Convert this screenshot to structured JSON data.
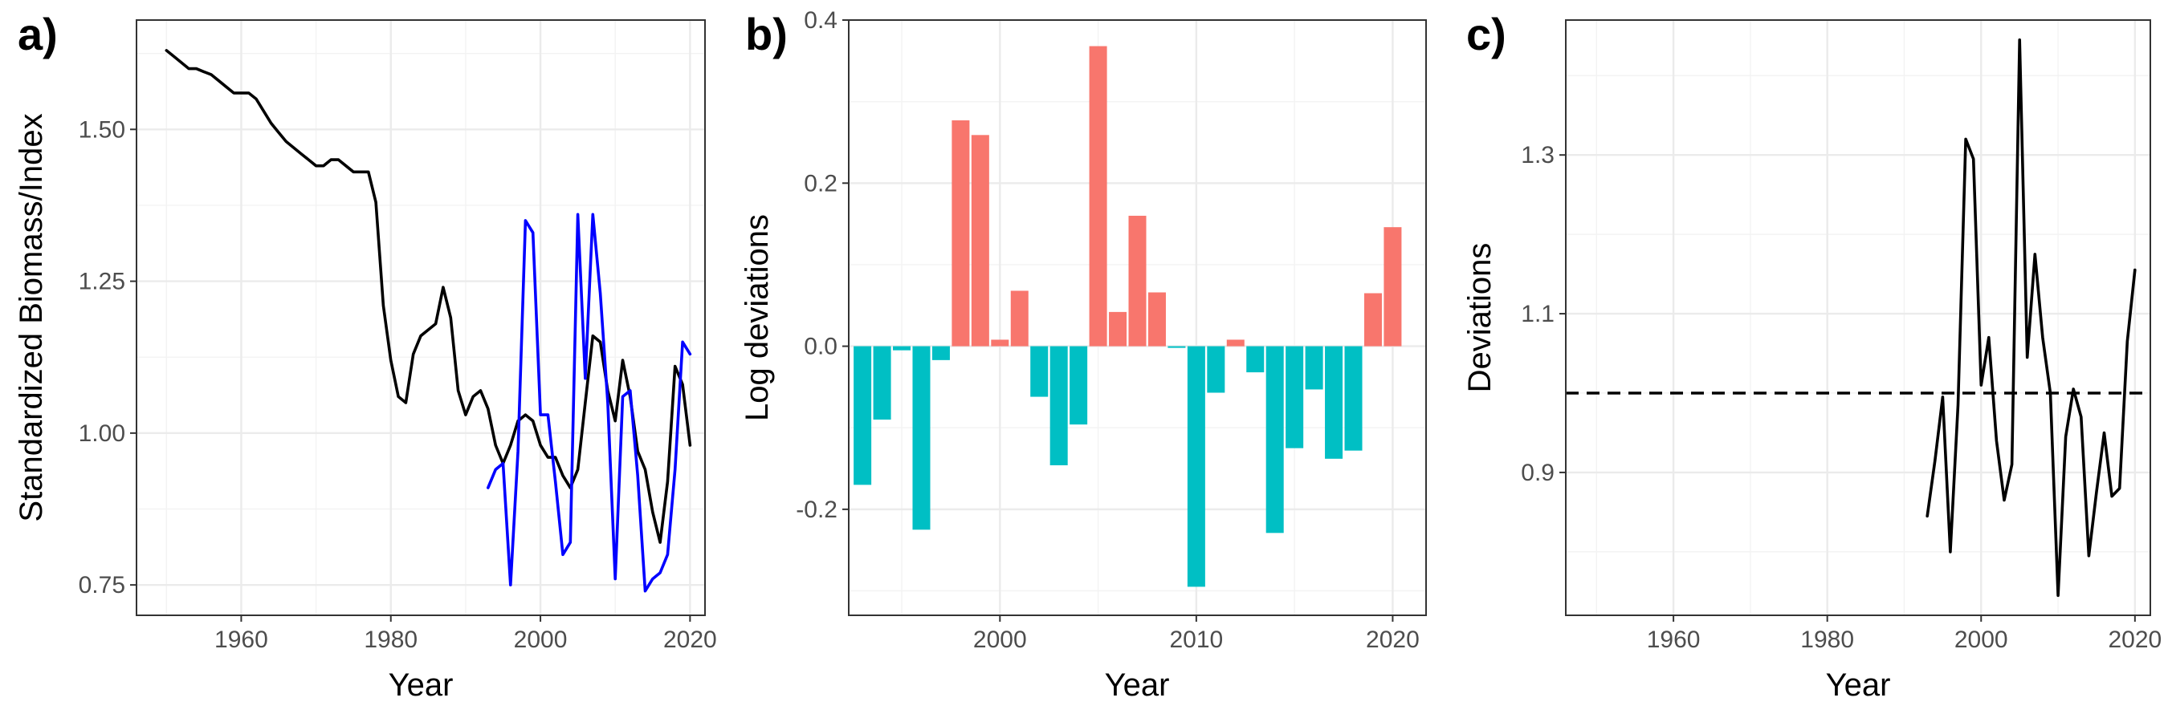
{
  "chart_data": [
    {
      "panel": "a)",
      "type": "line",
      "xlabel": "Year",
      "ylabel": "Standardized Biomass/Index",
      "xlim": [
        1946,
        2022
      ],
      "ylim": [
        0.7,
        1.68
      ],
      "xticks": [
        1960,
        1980,
        2000,
        2020
      ],
      "yticks": [
        0.75,
        1.0,
        1.25,
        1.5
      ],
      "ytick_labels": [
        "0.75",
        "1.00",
        "1.25",
        "1.50"
      ],
      "grid": true,
      "series": [
        {
          "color": "#000000",
          "x": [
            1950,
            1951,
            1952,
            1953,
            1954,
            1955,
            1956,
            1957,
            1958,
            1959,
            1960,
            1961,
            1962,
            1963,
            1964,
            1965,
            1966,
            1967,
            1968,
            1969,
            1970,
            1971,
            1972,
            1973,
            1974,
            1975,
            1976,
            1977,
            1978,
            1979,
            1980,
            1981,
            1982,
            1983,
            1984,
            1985,
            1986,
            1987,
            1988,
            1989,
            1990,
            1991,
            1992,
            1993,
            1994,
            1995,
            1996,
            1997,
            1998,
            1999,
            2000,
            2001,
            2002,
            2003,
            2004,
            2005,
            2006,
            2007,
            2008,
            2009,
            2010,
            2011,
            2012,
            2013,
            2014,
            2015,
            2016,
            2017,
            2018,
            2019,
            2020
          ],
          "y": [
            1.63,
            1.62,
            1.61,
            1.6,
            1.6,
            1.595,
            1.59,
            1.58,
            1.57,
            1.56,
            1.56,
            1.56,
            1.55,
            1.53,
            1.51,
            1.495,
            1.48,
            1.47,
            1.46,
            1.45,
            1.44,
            1.44,
            1.45,
            1.45,
            1.44,
            1.43,
            1.43,
            1.43,
            1.38,
            1.21,
            1.12,
            1.06,
            1.05,
            1.13,
            1.16,
            1.17,
            1.18,
            1.24,
            1.19,
            1.07,
            1.03,
            1.06,
            1.07,
            1.04,
            0.98,
            0.95,
            0.98,
            1.02,
            1.03,
            1.02,
            0.98,
            0.96,
            0.96,
            0.93,
            0.91,
            0.94,
            1.05,
            1.16,
            1.15,
            1.07,
            1.02,
            1.12,
            1.06,
            0.97,
            0.94,
            0.87,
            0.82,
            0.92,
            1.11,
            1.08,
            0.98
          ]
        },
        {
          "color": "#0000ff",
          "x": [
            1993,
            1994,
            1995,
            1996,
            1997,
            1998,
            1999,
            2000,
            2001,
            2002,
            2003,
            2004,
            2005,
            2006,
            2007,
            2008,
            2009,
            2010,
            2011,
            2012,
            2013,
            2014,
            2015,
            2016,
            2017,
            2018,
            2019,
            2020
          ],
          "y": [
            0.91,
            0.94,
            0.95,
            0.75,
            0.97,
            1.35,
            1.33,
            1.03,
            1.03,
            0.92,
            0.8,
            0.82,
            1.36,
            1.09,
            1.36,
            1.23,
            1.05,
            0.76,
            1.06,
            1.07,
            0.93,
            0.74,
            0.76,
            0.77,
            0.8,
            0.94,
            1.15,
            1.13
          ]
        }
      ]
    },
    {
      "panel": "b)",
      "type": "bar",
      "xlabel": "Year",
      "ylabel": "Log deviations",
      "xlim": [
        1992.3,
        2021.7
      ],
      "ylim": [
        -0.33,
        0.4
      ],
      "xticks": [
        2000,
        2010,
        2020
      ],
      "yticks": [
        -0.2,
        0.0,
        0.2,
        0.4
      ],
      "ytick_labels": [
        "-0.2",
        "0.0",
        "0.2",
        "0.4"
      ],
      "grid": true,
      "positive_color": "#f8766d",
      "negative_color": "#00bfc4",
      "x": [
        1993,
        1994,
        1995,
        1996,
        1997,
        1998,
        1999,
        2000,
        2001,
        2002,
        2003,
        2004,
        2005,
        2006,
        2007,
        2008,
        2009,
        2010,
        2011,
        2012,
        2013,
        2014,
        2015,
        2016,
        2017,
        2018,
        2019,
        2020
      ],
      "values": [
        -0.17,
        -0.09,
        -0.005,
        -0.225,
        -0.017,
        0.277,
        0.259,
        0.008,
        0.068,
        -0.062,
        -0.146,
        -0.096,
        0.368,
        0.042,
        0.16,
        0.066,
        -0.002,
        -0.295,
        -0.057,
        0.008,
        -0.032,
        -0.229,
        -0.125,
        -0.053,
        -0.138,
        -0.128,
        0.065,
        0.146
      ]
    },
    {
      "panel": "c)",
      "type": "line",
      "xlabel": "Year",
      "ylabel": "Deviations",
      "xlim": [
        1946,
        2022
      ],
      "ylim": [
        0.72,
        1.47
      ],
      "xticks": [
        1960,
        1980,
        2000,
        2020
      ],
      "yticks": [
        0.9,
        1.1,
        1.3
      ],
      "ytick_labels": [
        "0.9",
        "1.1",
        "1.3"
      ],
      "grid": true,
      "reference_line": 1.0,
      "series": [
        {
          "color": "#000000",
          "x": [
            1993,
            1994,
            1995,
            1996,
            1997,
            1998,
            1999,
            2000,
            2001,
            2002,
            2003,
            2004,
            2005,
            2006,
            2007,
            2008,
            2009,
            2010,
            2011,
            2012,
            2013,
            2014,
            2015,
            2016,
            2017,
            2018,
            2019,
            2020
          ],
          "y": [
            0.845,
            0.915,
            0.995,
            0.8,
            0.985,
            1.32,
            1.295,
            1.01,
            1.07,
            0.94,
            0.865,
            0.91,
            1.445,
            1.045,
            1.175,
            1.07,
            1.0,
            0.745,
            0.945,
            1.005,
            0.97,
            0.795,
            0.875,
            0.95,
            0.87,
            0.88,
            1.065,
            1.155
          ]
        }
      ]
    }
  ]
}
